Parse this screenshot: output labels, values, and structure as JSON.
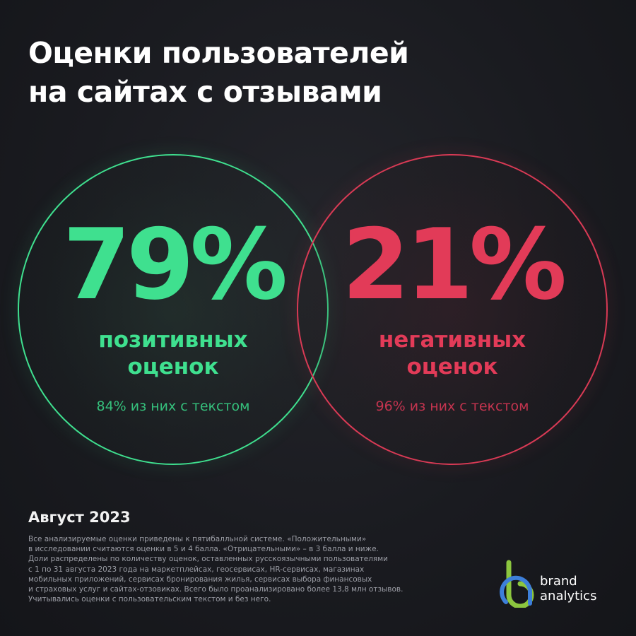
{
  "title": {
    "line1": "Оценки пользователей",
    "line2": "на сайтах с отзывами"
  },
  "positive": {
    "percent": "79%",
    "label_line1": "позитивных",
    "label_line2": "оценок",
    "sub": "84% из них с текстом",
    "color": "#3fe08f"
  },
  "negative": {
    "percent": "21%",
    "label_line1": "негативных",
    "label_line2": "оценок",
    "sub": "96% из них с текстом",
    "color": "#e23b58"
  },
  "date": "Август 2023",
  "note": {
    "lines": [
      "Все анализируемые оценки приведены к пятибалльной системе. «Положительными»",
      "в исследовании считаются оценки в 5 и 4 балла. «Отрицательными» – в 3 балла и ниже.",
      "Доли распределены по количеству оценок, оставленных русскоязычными пользователями",
      "с 1 по 31 августа 2023 года на маркетплейсах, геосервисах, HR-сервисах, магазинах",
      "мобильных приложений, сервисах бронирования жилья, сервисах выбора финансовых",
      "и страховых услуг и сайтах-отзовиках. Всего было проанализировано более 13,8 млн отзывов.",
      "Учитывались оценки с пользовательским текстом и без него."
    ]
  },
  "brand": {
    "icon": "brand-analytics-logo-icon",
    "line1": "brand",
    "line2": "analytics",
    "colors": {
      "green": "#8cc63f",
      "blue": "#3d7fd9"
    }
  }
}
